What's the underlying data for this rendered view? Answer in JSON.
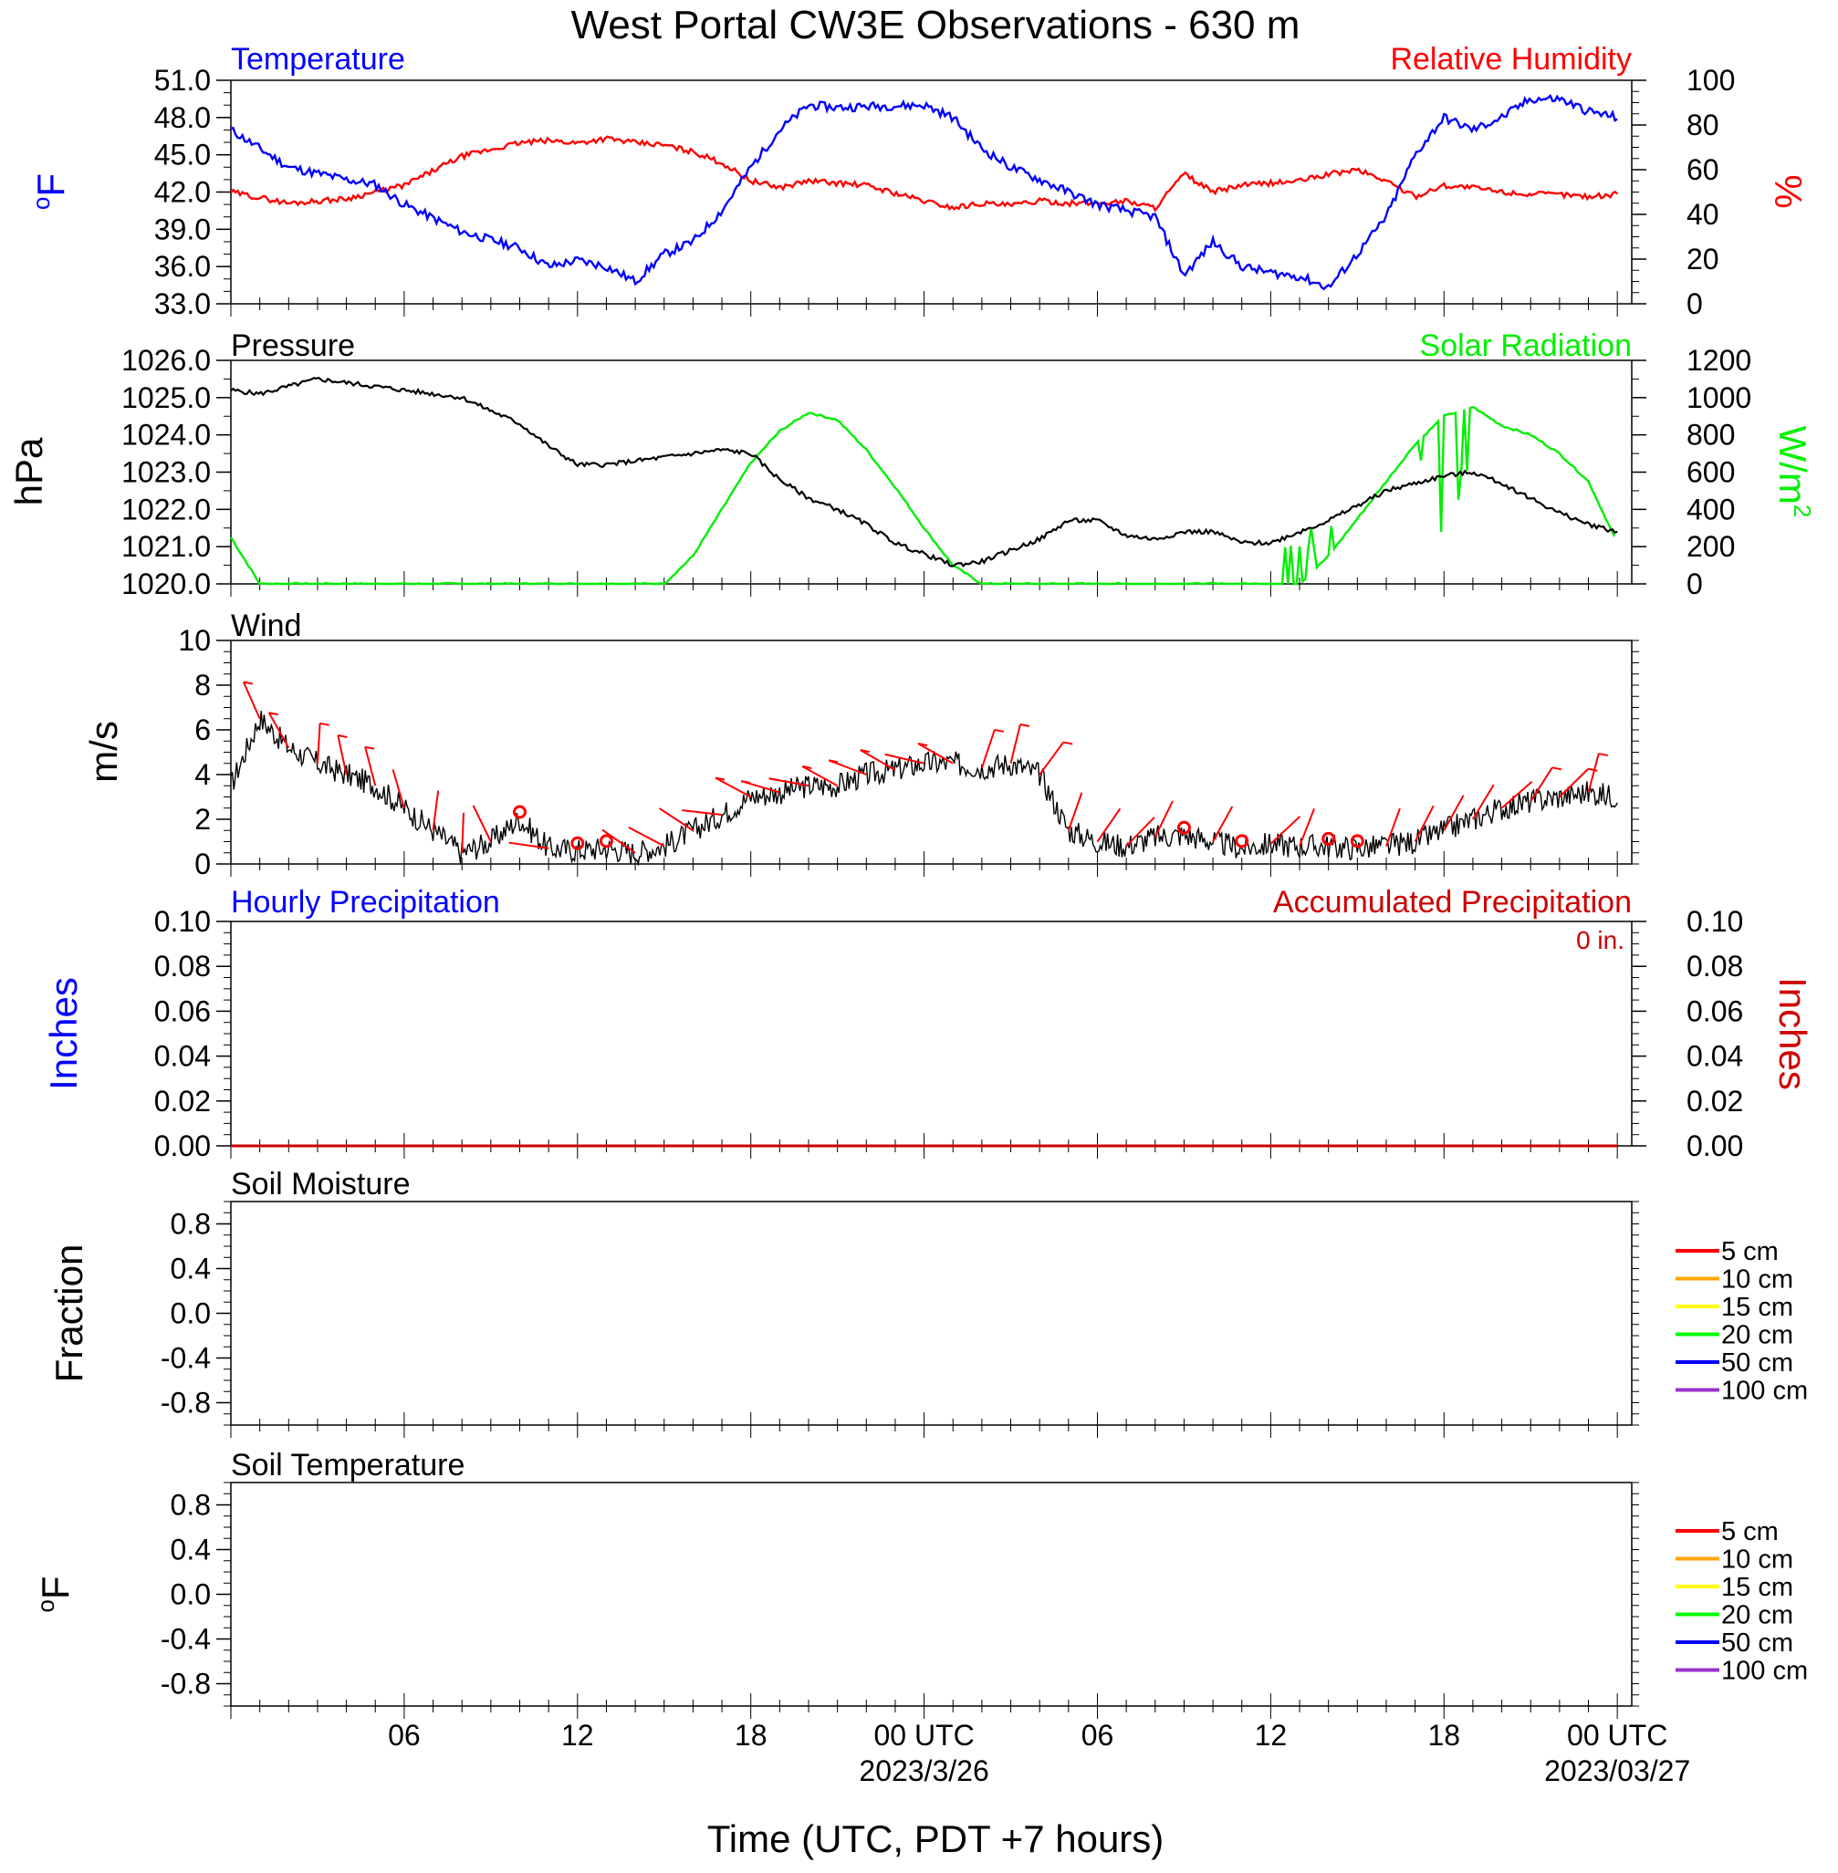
{
  "figure": {
    "title": "West Portal CW3E Observations - 630 m",
    "xlabel": "Time (UTC, PDT +7 hours)",
    "x_ticks": [
      "06",
      "12",
      "18",
      "00 UTC",
      "06",
      "12",
      "18",
      "00 UTC"
    ],
    "date_labels": [
      "2023/3/26",
      "2023/03/27"
    ]
  },
  "colors": {
    "temperature": "#0000ff",
    "humidity": "#ff0000",
    "pressure": "#000000",
    "solar": "#00ee00",
    "wind": "#000000",
    "barb": "#ff0000",
    "hourly_precip": "#0000ff",
    "accum_precip": "#cc0000",
    "soil_5": "#ff0000",
    "soil_10": "#ffa500",
    "soil_15": "#ffff00",
    "soil_20": "#00ff00",
    "soil_50": "#0000ff",
    "soil_100": "#9933cc"
  },
  "chart_data": [
    {
      "type": "line",
      "panel": "temperature-humidity",
      "left_label": "Temperature",
      "right_label": "Relative Humidity",
      "left_unit": "oF",
      "right_unit": "%",
      "left_ticks": [
        "51.0",
        "48.0",
        "45.0",
        "42.0",
        "39.0",
        "36.0",
        "33.0"
      ],
      "right_ticks": [
        "100",
        "80",
        "60",
        "40",
        "20",
        "0"
      ],
      "ylim": [
        33,
        51
      ],
      "y2lim": [
        0,
        100
      ],
      "x_hours": [
        0,
        2,
        4,
        5,
        6,
        8,
        10,
        11,
        12,
        13,
        14,
        15,
        16,
        17,
        18,
        19,
        20,
        21,
        22,
        24,
        25,
        26,
        27,
        28,
        29,
        30,
        31,
        32,
        33,
        34,
        35,
        36,
        37,
        38,
        39,
        40,
        41,
        42,
        43,
        44,
        45,
        46,
        47,
        48
      ],
      "series": [
        {
          "name": "Temperature",
          "values": [
            47,
            44,
            43,
            42.6,
            41,
            38.8,
            37.5,
            36,
            36.5,
            36,
            34.8,
            37,
            38,
            40.5,
            44,
            47,
            49,
            48.8,
            48.9,
            49,
            48,
            45.5,
            44,
            43,
            42,
            41,
            40.5,
            40,
            35.3,
            38,
            36,
            35.5,
            35.2,
            34.3,
            37,
            40,
            45,
            48,
            47,
            48,
            49.5,
            49.5,
            48.5,
            48
          ]
        },
        {
          "name": "Relative Humidity",
          "values": [
            50,
            45,
            47,
            50,
            53,
            66,
            72,
            73,
            72,
            74,
            72,
            71,
            68,
            63,
            55,
            52,
            55,
            54,
            53,
            46,
            43,
            45,
            44,
            46,
            45,
            45,
            46,
            43,
            58,
            50,
            53,
            54,
            55,
            58,
            60,
            55,
            48,
            53,
            52,
            50,
            49,
            49,
            48,
            49
          ]
        }
      ]
    },
    {
      "type": "line",
      "panel": "pressure-solar",
      "left_label": "Pressure",
      "right_label": "Solar Radiation",
      "left_unit": "hPa",
      "right_unit": "W/m2",
      "left_ticks": [
        "1026.0",
        "1025.0",
        "1024.0",
        "1023.0",
        "1022.0",
        "1021.0",
        "1020.0"
      ],
      "right_ticks": [
        "1200",
        "1000",
        "800",
        "600",
        "400",
        "200",
        "0"
      ],
      "ylim": [
        1020,
        1026
      ],
      "y2lim": [
        0,
        1200
      ],
      "x_hours": [
        0,
        1,
        2,
        3,
        4,
        5,
        6,
        8,
        10,
        11,
        12,
        13,
        14,
        15,
        16,
        17,
        18,
        19,
        20,
        21,
        22,
        23,
        24,
        25,
        26,
        28,
        29,
        30,
        31,
        32,
        33,
        34,
        35,
        36,
        37,
        38,
        40,
        41,
        42,
        43,
        44,
        45,
        46,
        47,
        48
      ],
      "series": [
        {
          "name": "Pressure",
          "values": [
            1025.2,
            1025.1,
            1025.3,
            1025.5,
            1025.4,
            1025.3,
            1025.2,
            1025,
            1024.3,
            1023.7,
            1023.2,
            1023.2,
            1023.3,
            1023.4,
            1023.5,
            1023.6,
            1023.5,
            1022.8,
            1022.3,
            1022.0,
            1021.6,
            1021.1,
            1020.8,
            1020.5,
            1020.6,
            1021.2,
            1021.7,
            1021.7,
            1021.3,
            1021.2,
            1021.4,
            1021.4,
            1021.1,
            1021.1,
            1021.4,
            1021.7,
            1022.5,
            1022.7,
            1022.9,
            1023.0,
            1022.7,
            1022.3,
            1021.9,
            1021.6,
            1021.4
          ]
        },
        {
          "name": "Solar Radiation",
          "values": [
            250,
            0,
            0,
            0,
            0,
            0,
            0,
            0,
            0,
            0,
            0,
            0,
            0,
            0,
            150,
            400,
            650,
            820,
            920,
            880,
            720,
            520,
            300,
            100,
            0,
            0,
            0,
            0,
            0,
            0,
            0,
            0,
            0,
            0,
            0,
            150,
            550,
            750,
            900,
            950,
            850,
            800,
            700,
            550,
            220
          ]
        }
      ]
    },
    {
      "type": "line",
      "panel": "wind",
      "label": "Wind",
      "unit": "m/s",
      "y_ticks": [
        "10",
        "8",
        "6",
        "4",
        "2",
        "0"
      ],
      "ylim": [
        0,
        10
      ],
      "x_hours": [
        0,
        1,
        2,
        3,
        4,
        5,
        6,
        7,
        8,
        9,
        10,
        11,
        12,
        13,
        14,
        15,
        16,
        17,
        18,
        19,
        20,
        21,
        22,
        23,
        24,
        25,
        26,
        27,
        28,
        29,
        30,
        31,
        32,
        33,
        34,
        35,
        36,
        37,
        38,
        39,
        40,
        41,
        42,
        43,
        44,
        45,
        46,
        47,
        48
      ],
      "series": [
        {
          "name": "Wind",
          "values": [
            3.5,
            6.5,
            5.2,
            4.5,
            4,
            3.5,
            2.5,
            1.5,
            0.5,
            1,
            2,
            0.7,
            0.6,
            0.7,
            0.5,
            0.8,
            1.5,
            2.2,
            3,
            3.2,
            3.5,
            3.5,
            4,
            4.2,
            4.5,
            4.5,
            4.3,
            4.5,
            4,
            1.5,
            1,
            0.8,
            1.2,
            1.3,
            1.0,
            0.7,
            0.9,
            0.8,
            0.8,
            0.7,
            0.8,
            1,
            1.5,
            2,
            2.5,
            2.8,
            3,
            3.2,
            3.0
          ]
        }
      ],
      "calm_hours": [
        10,
        12,
        13,
        33,
        35,
        38,
        39
      ]
    },
    {
      "type": "line",
      "panel": "precipitation",
      "left_label": "Hourly Precipitation",
      "right_label": "Accumulated Precipitation",
      "total_label": "0 in.",
      "left_unit": "Inches",
      "right_unit": "Inches",
      "left_ticks": [
        "0.10",
        "0.08",
        "0.06",
        "0.04",
        "0.02",
        "0.00"
      ],
      "right_ticks": [
        "0.10",
        "0.08",
        "0.06",
        "0.04",
        "0.02",
        "0.00"
      ],
      "ylim": [
        0,
        0.1
      ],
      "x_hours": [
        0,
        48
      ],
      "series": [
        {
          "name": "Hourly Precipitation",
          "values": [
            0,
            0
          ]
        },
        {
          "name": "Accumulated Precipitation",
          "values": [
            0,
            0
          ]
        }
      ]
    },
    {
      "type": "line",
      "panel": "soil-moisture",
      "label": "Soil Moisture",
      "unit": "Fraction",
      "y_ticks": [
        "0.8",
        "0.4",
        "0.0",
        "-0.4",
        "-0.8"
      ],
      "ylim": [
        -1,
        1
      ],
      "legend": [
        "5 cm",
        "10 cm",
        "15 cm",
        "20 cm",
        "50 cm",
        "100 cm"
      ]
    },
    {
      "type": "line",
      "panel": "soil-temperature",
      "label": "Soil Temperature",
      "unit": "oF",
      "y_ticks": [
        "0.8",
        "0.4",
        "0.0",
        "-0.4",
        "-0.8"
      ],
      "ylim": [
        -1,
        1
      ],
      "legend": [
        "5 cm",
        "10 cm",
        "15 cm",
        "20 cm",
        "50 cm",
        "100 cm"
      ]
    }
  ]
}
